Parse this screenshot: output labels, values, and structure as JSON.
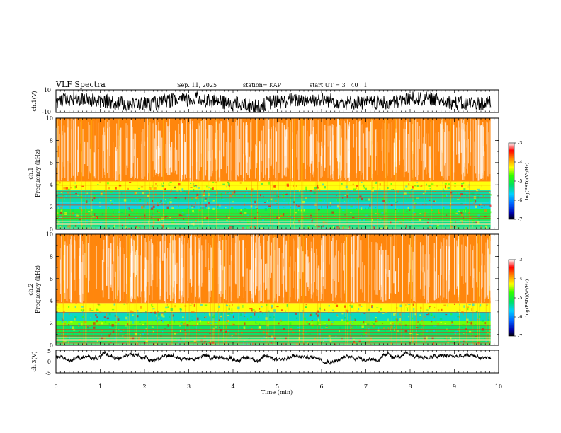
{
  "chart_data": {
    "type": "heatmap",
    "header": {
      "title": "VLF Spectra",
      "date": "Sep. 11, 2025",
      "station": "station= KAP",
      "start_ut": "start  UT =   3 : 40 : 1"
    },
    "x_axis": {
      "label": "Time  (min)",
      "range": [
        0,
        10
      ],
      "ticks": [
        "0",
        "1",
        "2",
        "3",
        "4",
        "5",
        "6",
        "7",
        "8",
        "9",
        "10"
      ],
      "data_end": 9.82
    },
    "panels": [
      {
        "id": "ch1-waveform",
        "ylabel": "ch.1(V)",
        "ylim": [
          -10,
          10
        ],
        "ytick_labels": [
          "10",
          "-10"
        ],
        "series": {
          "name": "ch.1",
          "mean": 0,
          "amplitude": 8
        }
      },
      {
        "id": "ch1-spectrogram",
        "ylabel_channel": "ch.1",
        "ylabel_quantity": "Frequency  (kHz)",
        "ylim": [
          0,
          10
        ],
        "ytick_labels": [
          "0",
          "2",
          "4",
          "6",
          "8",
          "10"
        ],
        "bands": [
          {
            "from": 0.0,
            "to": 0.8,
            "level": -5.3
          },
          {
            "from": 0.8,
            "to": 1.8,
            "level": -5.0
          },
          {
            "from": 1.8,
            "to": 2.4,
            "level": -5.6
          },
          {
            "from": 2.4,
            "to": 3.5,
            "level": -5.4
          },
          {
            "from": 3.5,
            "to": 4.3,
            "level": -4.3
          },
          {
            "from": 4.3,
            "to": 10.0,
            "level": -3.8
          }
        ],
        "colorbar": {
          "label": "log(PSD)(V²/Hz)",
          "range": [
            -7,
            -3
          ],
          "tick_labels": [
            "-3",
            "-4",
            "-5",
            "-6",
            "-7"
          ]
        }
      },
      {
        "id": "ch2-spectrogram",
        "ylabel_channel": "ch.2",
        "ylabel_quantity": "Frequency  (kHz)",
        "ylim": [
          0,
          10
        ],
        "ytick_labels": [
          "0",
          "2",
          "4",
          "6",
          "8",
          "10"
        ],
        "bands": [
          {
            "from": 0.0,
            "to": 0.6,
            "level": -5.2
          },
          {
            "from": 0.6,
            "to": 1.8,
            "level": -5.2
          },
          {
            "from": 1.8,
            "to": 2.2,
            "level": -4.6
          },
          {
            "from": 2.2,
            "to": 3.0,
            "level": -5.5
          },
          {
            "from": 3.0,
            "to": 3.8,
            "level": -4.3
          },
          {
            "from": 3.8,
            "to": 10.0,
            "level": -3.8
          }
        ],
        "colorbar": {
          "label": "log(PSD)(V²/Hz)",
          "range": [
            -7,
            -3
          ],
          "tick_labels": [
            "-3",
            "-4",
            "-5",
            "-6",
            "-7"
          ]
        }
      },
      {
        "id": "ch3-waveform",
        "ylabel": "ch.3(V)",
        "ylim": [
          -5,
          5
        ],
        "ytick_labels": [
          "5",
          "0",
          "-5"
        ],
        "series": {
          "name": "ch.3",
          "mean": 1.9,
          "amplitude": 0.6
        }
      }
    ]
  }
}
